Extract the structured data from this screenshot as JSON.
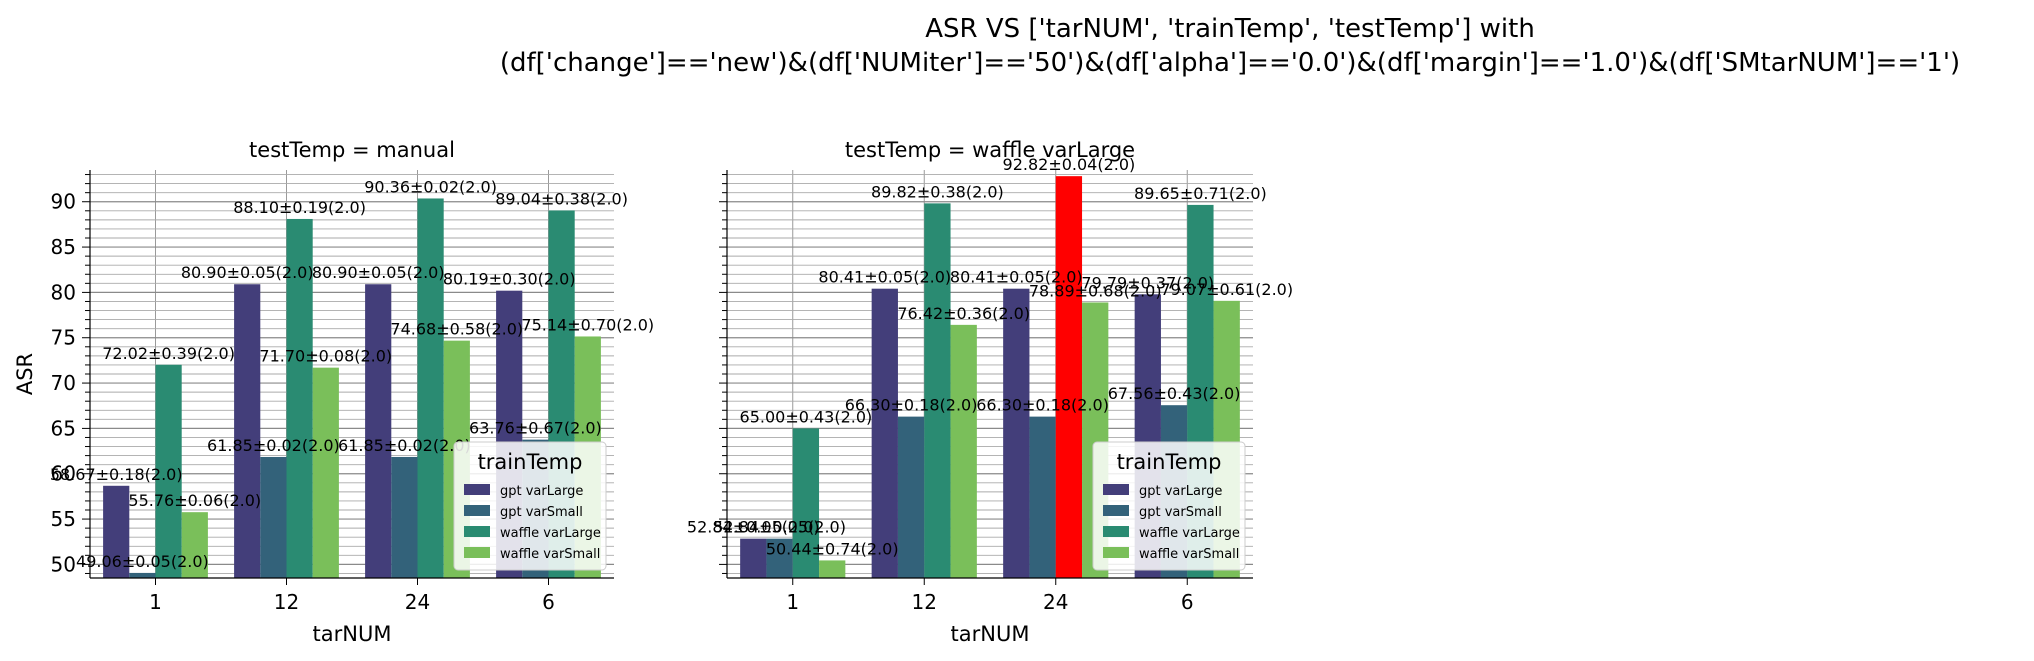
{
  "suptitle": {
    "line1": "ASR VS ['tarNUM', 'trainTemp', 'testTemp'] with",
    "line2": "(df['change']=='new')&(df['NUMiter']=='50')&(df['alpha']=='0.0')&(df['margin']=='1.0')&(df['SMtarNUM']=='1')"
  },
  "colors": {
    "gpt varLarge": "#433e7a",
    "gpt varSmall": "#33627a",
    "waffle varLarge": "#2a8b72",
    "waffle varSmall": "#7abf5a",
    "highlight": "#ff0000"
  },
  "chart_data": [
    {
      "type": "bar",
      "title": "testTemp = manual",
      "xlabel": "tarNUM",
      "ylabel": "ASR",
      "categories": [
        "1",
        "12",
        "24",
        "6"
      ],
      "ylim": [
        48.5,
        93.5
      ],
      "yticks": [
        50,
        55,
        60,
        65,
        70,
        75,
        80,
        85,
        90
      ],
      "grid": true,
      "legend": {
        "title": "trainTemp",
        "position": "lower right"
      },
      "series": [
        {
          "name": "gpt varLarge",
          "values": [
            58.67,
            80.9,
            80.9,
            80.19
          ],
          "labels": [
            "58.67±0.18(2.0)",
            "80.90±0.05(2.0)",
            "80.90±0.05(2.0)",
            "80.19±0.30(2.0)"
          ]
        },
        {
          "name": "gpt varSmall",
          "values": [
            49.06,
            61.85,
            61.85,
            63.76
          ],
          "labels": [
            "49.06±0.05(2.0)",
            "61.85±0.02(2.0)",
            "61.85±0.02(2.0)",
            "63.76±0.67(2.0)"
          ]
        },
        {
          "name": "waffle varLarge",
          "values": [
            72.02,
            88.1,
            90.36,
            89.04
          ],
          "labels": [
            "72.02±0.39(2.0)",
            "88.10±0.19(2.0)",
            "90.36±0.02(2.0)",
            "89.04±0.38(2.0)"
          ]
        },
        {
          "name": "waffle varSmall",
          "values": [
            55.76,
            71.7,
            74.68,
            75.14
          ],
          "labels": [
            "55.76±0.06(2.0)",
            "71.70±0.08(2.0)",
            "74.68±0.58(2.0)",
            "75.14±0.70(2.0)"
          ]
        }
      ],
      "highlight": null
    },
    {
      "type": "bar",
      "title": "testTemp = waffle varLarge",
      "xlabel": "tarNUM",
      "ylabel": "",
      "categories": [
        "1",
        "12",
        "24",
        "6"
      ],
      "ylim": [
        48.5,
        93.5
      ],
      "yticks": [
        50,
        55,
        60,
        65,
        70,
        75,
        80,
        85,
        90
      ],
      "grid": true,
      "legend": {
        "title": "trainTemp",
        "position": "lower right"
      },
      "series": [
        {
          "name": "gpt varLarge",
          "values": [
            52.84,
            80.41,
            80.41,
            79.79
          ],
          "labels": [
            "52.84±0.05(2.0)",
            "80.41±0.05(2.0)",
            "80.41±0.05(2.0)",
            "79.79±0.37(2.0)"
          ]
        },
        {
          "name": "gpt varSmall",
          "values": [
            52.84,
            66.3,
            66.3,
            67.56
          ],
          "labels": [
            "52.84±0.05(2.0)",
            "66.30±0.18(2.0)",
            "66.30±0.18(2.0)",
            "67.56±0.43(2.0)"
          ]
        },
        {
          "name": "waffle varLarge",
          "values": [
            65.0,
            89.82,
            92.82,
            89.65
          ],
          "labels": [
            "65.00±0.43(2.0)",
            "89.82±0.38(2.0)",
            "92.82±0.04(2.0)",
            "89.65±0.71(2.0)"
          ]
        },
        {
          "name": "waffle varSmall",
          "values": [
            50.44,
            76.42,
            78.89,
            79.07
          ],
          "labels": [
            "50.44±0.74(2.0)",
            "76.42±0.36(2.0)",
            "78.89±0.68(2.0)",
            "79.07±0.61(2.0)"
          ]
        }
      ],
      "highlight": {
        "series": 2,
        "category": 2
      }
    }
  ]
}
